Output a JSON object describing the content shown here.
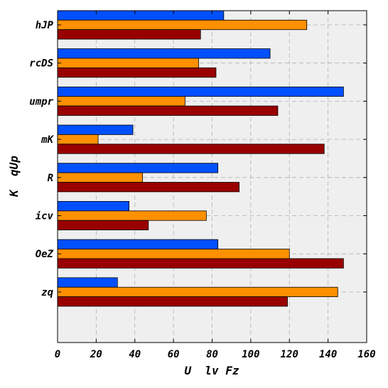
{
  "chart_data": {
    "type": "bar",
    "orientation": "horizontal",
    "title": "",
    "xlabel": "U  lv Fz",
    "ylabel": "K  qUp",
    "xlim": [
      0,
      160
    ],
    "xticks": [
      0,
      20,
      40,
      60,
      80,
      100,
      120,
      140,
      160
    ],
    "categories": [
      "hJP",
      "rcDS",
      "umpr",
      "mK",
      "R",
      "icv",
      "OeZ",
      "zq"
    ],
    "grid": true,
    "series": [
      {
        "color": "#0050ff",
        "values": [
          86,
          110,
          148,
          39,
          83,
          37,
          83,
          31
        ]
      },
      {
        "color": "#ff9000",
        "values": [
          129,
          73,
          66,
          21,
          44,
          77,
          120,
          145
        ]
      },
      {
        "color": "#990000",
        "values": [
          74,
          82,
          114,
          138,
          94,
          47,
          148,
          119
        ]
      }
    ],
    "background_color": "#efefef"
  }
}
